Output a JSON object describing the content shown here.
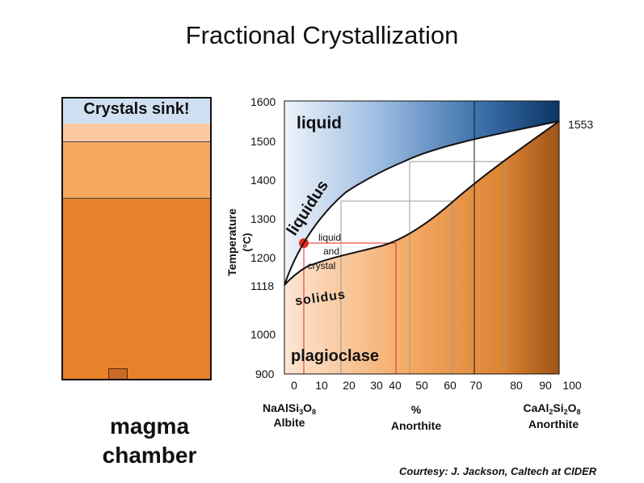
{
  "title": "Fractional Crystallization",
  "chamber": {
    "crystals_label": "Crystals sink!",
    "magma_line1": "magma",
    "magma_line2": "chamber",
    "colors": {
      "top": "#cfe0f2",
      "band1": "#fac9a2",
      "band2": "#f5a85f",
      "magma": "#e8822a"
    }
  },
  "diagram": {
    "y_axis_label": "Temperature",
    "y_axis_unit": "(°C)",
    "y_ticks": [
      "1600",
      "1500",
      "1400",
      "1300",
      "1200",
      "1118",
      "1000",
      "900"
    ],
    "x_ticks": [
      "0",
      "10",
      "20",
      "30",
      "40",
      "50",
      "60",
      "70",
      "80",
      "90",
      "100"
    ],
    "label_1553": "1553",
    "region_liquid": "liquid",
    "region_liquid_crystal_1": "liquid",
    "region_liquid_crystal_2": "and",
    "region_liquid_crystal_3": "crystal",
    "region_plagioclase": "plagioclase",
    "curve_liquidus": "liquidus",
    "curve_solidus": "solidus",
    "left_end": {
      "formula": "NaAlSi3O8",
      "name": "Albite"
    },
    "center_label_1": "%",
    "center_label_2": "Anorthite",
    "right_end": {
      "formula": "CaAl2Si2O8",
      "name": "Anorthite"
    }
  },
  "credit": "Courtesy: J. Jackson, Caltech at CIDER",
  "colors": {
    "liquid_dark": "#0b3566",
    "liquid_light": "#e6eef8",
    "solid_light": "#fde3cc",
    "solid_dark": "#a65a1e",
    "point": "#e52b1f",
    "path": "#e52b1f"
  }
}
